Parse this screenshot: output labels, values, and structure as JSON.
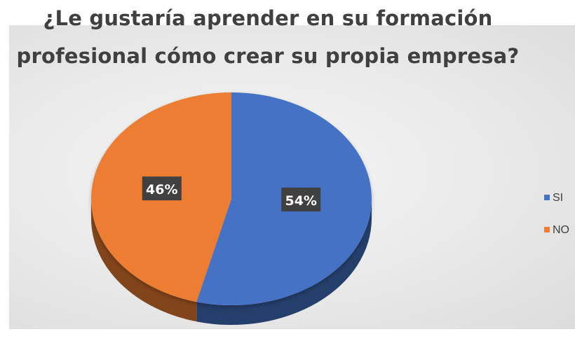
{
  "chart_data": {
    "type": "pie",
    "title": "¿Le gustaría aprender en su formación profesional cómo crear su propia empresa?",
    "title_lines": [
      "¿Le gustaría aprender en su formación",
      "profesional cómo crear su propia empresa?"
    ],
    "categories": [
      "SI",
      "NO"
    ],
    "values": [
      54,
      46
    ],
    "data_labels": [
      "54%",
      "46%"
    ],
    "colors": [
      "#4472C4",
      "#ED7D31"
    ],
    "legend_position": "right"
  }
}
